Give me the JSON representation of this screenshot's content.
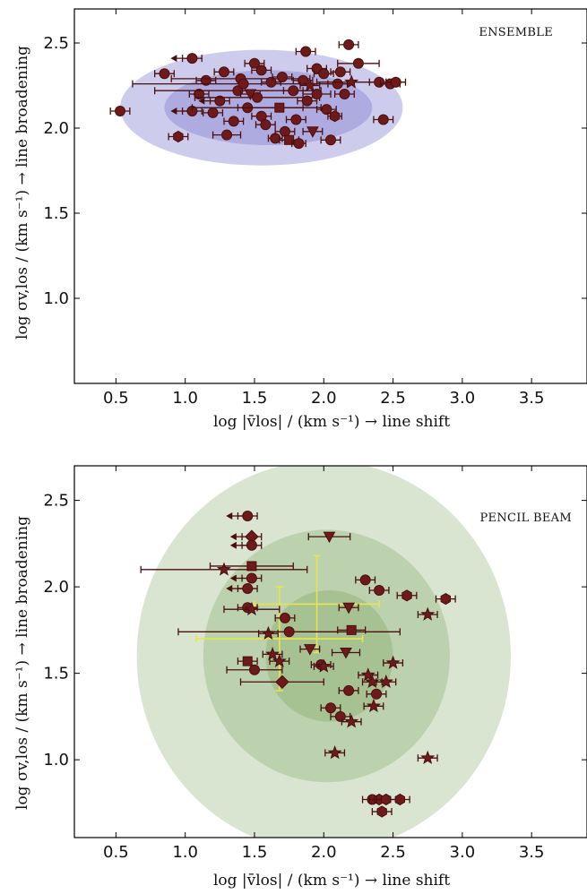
{
  "chart_data": [
    {
      "type": "scatter",
      "title": "ENSEMBLE",
      "xlabel": "log |v̄los| / (km s⁻¹) → line shift",
      "ylabel": "log σv,los / (km s⁻¹) → line broadening",
      "xlim": [
        0.2,
        3.9
      ],
      "ylim": [
        0.5,
        2.7
      ],
      "xticks": [
        "0.5",
        "1.0",
        "1.5",
        "2.0",
        "2.5",
        "3.0",
        "3.5"
      ],
      "yticks": [
        "1.0",
        "1.5",
        "2.0",
        "2.5"
      ],
      "regions": [
        {
          "cx": 1.55,
          "cy": 2.12,
          "rx": 1.02,
          "ry": 0.34,
          "color": "#2d2ab0",
          "opacity": 0.24
        },
        {
          "cx": 1.6,
          "cy": 2.12,
          "rx": 0.75,
          "ry": 0.22,
          "color": "#2d2ab0",
          "opacity": 0.2
        }
      ],
      "series": [
        {
          "values": [
            {
              "x": 0.53,
              "y": 2.1,
              "m": "o"
            },
            {
              "x": 0.85,
              "y": 2.32,
              "m": "o"
            },
            {
              "x": 0.95,
              "y": 1.95,
              "m": "h"
            },
            {
              "x": 1.05,
              "y": 2.41,
              "m": "o",
              "ul": true
            },
            {
              "x": 1.05,
              "y": 2.1,
              "m": "o",
              "ul": true
            },
            {
              "x": 1.1,
              "y": 2.2,
              "m": "o"
            },
            {
              "x": 1.15,
              "y": 2.28,
              "m": "o"
            },
            {
              "x": 1.2,
              "y": 2.09,
              "m": "o"
            },
            {
              "x": 1.25,
              "y": 2.16,
              "m": "o",
              "ul": true
            },
            {
              "x": 1.28,
              "y": 2.33,
              "m": "o"
            },
            {
              "x": 1.3,
              "y": 1.96,
              "m": "o",
              "xerr": 0.1
            },
            {
              "x": 1.35,
              "y": 2.04,
              "m": "o"
            },
            {
              "x": 1.38,
              "y": 2.22,
              "m": "o",
              "xerr": 0.6
            },
            {
              "x": 1.4,
              "y": 2.29,
              "m": "o",
              "xerr": 0.5
            },
            {
              "x": 1.42,
              "y": 2.26,
              "m": "o",
              "xerr": 0.8
            },
            {
              "x": 1.45,
              "y": 2.12,
              "m": "o",
              "xerr": 0.4
            },
            {
              "x": 1.47,
              "y": 2.2,
              "m": "v"
            },
            {
              "x": 1.5,
              "y": 2.38,
              "m": "o"
            },
            {
              "x": 1.52,
              "y": 2.18,
              "m": "o",
              "xerr": 0.45
            },
            {
              "x": 1.55,
              "y": 2.34,
              "m": "o"
            },
            {
              "x": 1.55,
              "y": 2.07,
              "m": "o"
            },
            {
              "x": 1.58,
              "y": 2.02,
              "m": "o"
            },
            {
              "x": 1.62,
              "y": 2.27,
              "m": "o"
            },
            {
              "x": 1.65,
              "y": 1.94,
              "m": "o",
              "xerr": 0.05
            },
            {
              "x": 1.68,
              "y": 2.12,
              "m": "s",
              "xerr": 0.3
            },
            {
              "x": 1.7,
              "y": 2.3,
              "m": "o"
            },
            {
              "x": 1.72,
              "y": 1.98,
              "m": "o"
            },
            {
              "x": 1.75,
              "y": 1.93,
              "m": "s"
            },
            {
              "x": 1.78,
              "y": 2.22,
              "m": "o"
            },
            {
              "x": 1.8,
              "y": 2.05,
              "m": "o"
            },
            {
              "x": 1.82,
              "y": 1.91,
              "m": "o",
              "xerr": 0.05
            },
            {
              "x": 1.85,
              "y": 2.28,
              "m": "o"
            },
            {
              "x": 1.87,
              "y": 2.45,
              "m": "o"
            },
            {
              "x": 1.88,
              "y": 2.16,
              "m": "o"
            },
            {
              "x": 1.9,
              "y": 2.25,
              "m": "*"
            },
            {
              "x": 1.92,
              "y": 1.98,
              "m": "v"
            },
            {
              "x": 1.95,
              "y": 2.35,
              "m": "o"
            },
            {
              "x": 1.95,
              "y": 2.2,
              "m": "o",
              "xerr": 0.1
            },
            {
              "x": 2.0,
              "y": 2.32,
              "m": "o"
            },
            {
              "x": 2.02,
              "y": 2.11,
              "m": "o"
            },
            {
              "x": 2.05,
              "y": 1.93,
              "m": "o"
            },
            {
              "x": 2.08,
              "y": 2.07,
              "m": "h",
              "xerr": 0.05
            },
            {
              "x": 2.1,
              "y": 2.26,
              "m": "o"
            },
            {
              "x": 2.12,
              "y": 2.33,
              "m": "o"
            },
            {
              "x": 2.15,
              "y": 2.2,
              "m": "o"
            },
            {
              "x": 2.18,
              "y": 2.49,
              "m": "o"
            },
            {
              "x": 2.2,
              "y": 2.27,
              "m": "*",
              "xerr": 0.25
            },
            {
              "x": 2.25,
              "y": 2.38,
              "m": "o",
              "xerr": 0.15
            },
            {
              "x": 2.4,
              "y": 2.27,
              "m": "o"
            },
            {
              "x": 2.43,
              "y": 2.05,
              "m": "o"
            },
            {
              "x": 2.48,
              "y": 2.26,
              "m": "o"
            },
            {
              "x": 2.52,
              "y": 2.27,
              "m": "o"
            }
          ]
        }
      ]
    },
    {
      "type": "scatter",
      "title": "PENCIL BEAM",
      "xlabel": "log |v̄los| / (km s⁻¹) → line shift",
      "ylabel": "log σv,los / (km s⁻¹) → line broadening",
      "xlim": [
        0.2,
        3.9
      ],
      "ylim": [
        0.55,
        2.7
      ],
      "xticks": [
        "0.5",
        "1.0",
        "1.5",
        "2.0",
        "2.5",
        "3.0",
        "3.5"
      ],
      "yticks": [
        "1.0",
        "1.5",
        "2.0",
        "2.5"
      ],
      "regions": [
        {
          "cx": 2.0,
          "cy": 1.6,
          "rx": 1.35,
          "ry": 1.13,
          "color": "#5f9440",
          "opacity": 0.24
        },
        {
          "cx": 2.02,
          "cy": 1.6,
          "rx": 0.89,
          "ry": 0.73,
          "color": "#5f9440",
          "opacity": 0.24
        },
        {
          "cx": 2.04,
          "cy": 1.6,
          "rx": 0.46,
          "ry": 0.38,
          "color": "#5f9440",
          "opacity": 0.24
        }
      ],
      "reference_points": [
        {
          "x": 1.68,
          "y": 1.7,
          "xerr": 0.6,
          "yerr": 0.3
        },
        {
          "x": 1.95,
          "y": 1.9,
          "xerr": 0.45,
          "yerr": 0.28
        }
      ],
      "series": [
        {
          "values": [
            {
              "x": 1.28,
              "y": 2.1,
              "m": "*",
              "xerr": 0.6
            },
            {
              "x": 1.45,
              "y": 2.41,
              "m": "o",
              "ul": true
            },
            {
              "x": 1.48,
              "y": 2.29,
              "m": "D",
              "ul": true
            },
            {
              "x": 1.48,
              "y": 2.24,
              "m": "o",
              "ul": true
            },
            {
              "x": 1.48,
              "y": 2.12,
              "m": "s",
              "xerr": 0.3
            },
            {
              "x": 1.48,
              "y": 2.05,
              "m": "o",
              "ul": true
            },
            {
              "x": 1.45,
              "y": 1.99,
              "m": "o",
              "ul": true
            },
            {
              "x": 1.45,
              "y": 1.88,
              "m": "o"
            },
            {
              "x": 1.45,
              "y": 1.57,
              "m": "s"
            },
            {
              "x": 1.48,
              "y": 1.87,
              "m": "*",
              "xerr": 0.2
            },
            {
              "x": 1.5,
              "y": 1.52,
              "m": "o",
              "xerr": 0.2
            },
            {
              "x": 1.6,
              "y": 1.73,
              "m": "*"
            },
            {
              "x": 1.63,
              "y": 1.61,
              "m": "*"
            },
            {
              "x": 1.68,
              "y": 1.57,
              "m": "*"
            },
            {
              "x": 1.7,
              "y": 1.45,
              "m": "D",
              "xerr": 0.3
            },
            {
              "x": 1.72,
              "y": 1.82,
              "m": "o"
            },
            {
              "x": 1.75,
              "y": 1.74,
              "m": "o",
              "xerr": 0.8
            },
            {
              "x": 1.9,
              "y": 1.64,
              "m": "v"
            },
            {
              "x": 1.98,
              "y": 1.55,
              "m": "o"
            },
            {
              "x": 2.0,
              "y": 1.54,
              "m": "*"
            },
            {
              "x": 2.04,
              "y": 2.29,
              "m": "v",
              "xerr": 0.15
            },
            {
              "x": 2.05,
              "y": 1.3,
              "m": "o"
            },
            {
              "x": 2.08,
              "y": 1.04,
              "m": "*"
            },
            {
              "x": 2.12,
              "y": 1.25,
              "m": "o"
            },
            {
              "x": 2.16,
              "y": 1.62,
              "m": "v",
              "xerr": 0.1
            },
            {
              "x": 2.18,
              "y": 1.4,
              "m": "o"
            },
            {
              "x": 2.18,
              "y": 1.88,
              "m": "v"
            },
            {
              "x": 2.2,
              "y": 1.75,
              "m": "s",
              "xerr": 0.1
            },
            {
              "x": 2.2,
              "y": 1.22,
              "m": "*"
            },
            {
              "x": 2.3,
              "y": 2.04,
              "m": "o"
            },
            {
              "x": 2.32,
              "y": 1.49,
              "m": "*"
            },
            {
              "x": 2.35,
              "y": 1.45,
              "m": "*"
            },
            {
              "x": 2.36,
              "y": 1.31,
              "m": "*"
            },
            {
              "x": 2.38,
              "y": 1.38,
              "m": "o"
            },
            {
              "x": 2.4,
              "y": 1.98,
              "m": "o"
            },
            {
              "x": 2.45,
              "y": 1.45,
              "m": "*"
            },
            {
              "x": 2.5,
              "y": 1.56,
              "m": "*"
            },
            {
              "x": 2.6,
              "y": 1.95,
              "m": "h"
            },
            {
              "x": 2.75,
              "y": 1.84,
              "m": "*"
            },
            {
              "x": 2.75,
              "y": 1.01,
              "m": "*"
            },
            {
              "x": 2.88,
              "y": 1.93,
              "m": "h"
            },
            {
              "x": 2.35,
              "y": 0.77,
              "m": "o"
            },
            {
              "x": 2.4,
              "y": 0.77,
              "m": "h"
            },
            {
              "x": 2.42,
              "y": 0.7,
              "m": "h"
            },
            {
              "x": 2.45,
              "y": 0.77,
              "m": "h"
            },
            {
              "x": 2.55,
              "y": 0.77,
              "m": "h"
            }
          ]
        }
      ]
    }
  ]
}
